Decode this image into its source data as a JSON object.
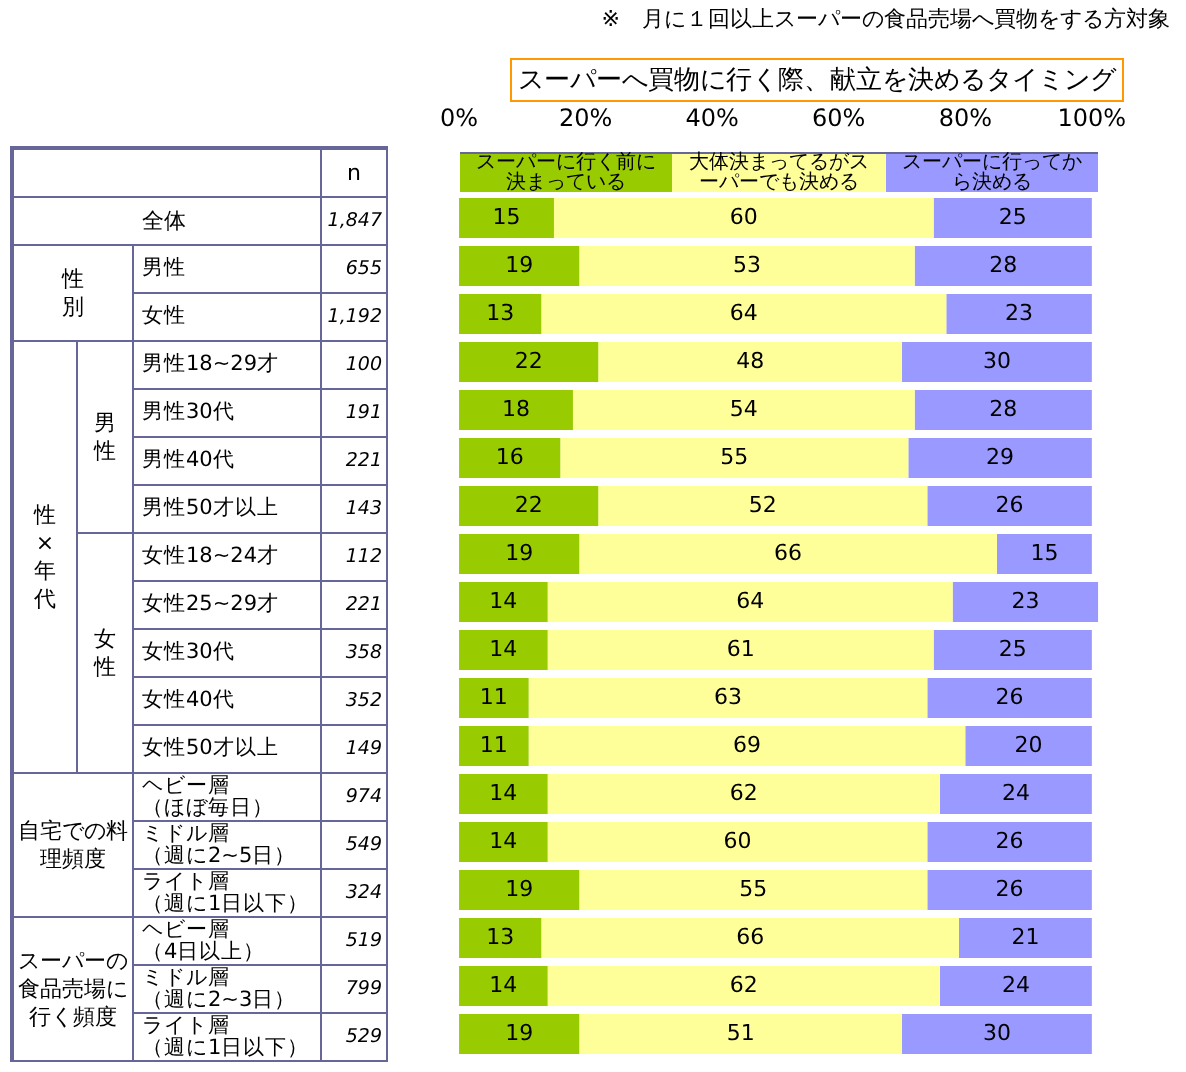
{
  "chart_data": {
    "type": "bar",
    "orientation": "horizontal",
    "stacked": true,
    "title": "スーパーへ買物に行く際、献立を決めるタイミング",
    "categories": [
      "全体",
      "男性",
      "女性",
      "男性18~29才",
      "男性30代",
      "男性40代",
      "男性50才以上",
      "女性18~24才",
      "女性25~29才",
      "女性30代",
      "女性40代",
      "女性50才以上",
      "ヘビー層（ほぼ毎日）",
      "ミドル層（週に2~5日）",
      "ライト層（週に1日以下）",
      "ヘビー層（4日以上）",
      "ミドル層（週に2~3日）",
      "ライト層（週に1日以下）"
    ],
    "y2_categories": [
      "1,847",
      "655",
      "1,192",
      "100",
      "191",
      "221",
      "143",
      "112",
      "221",
      "358",
      "352",
      "149",
      "974",
      "549",
      "324",
      "519",
      "799",
      "529"
    ],
    "series": [
      {
        "name": "スーパーに行く前に決まっている",
        "color": "#99cc00",
        "values": [
          15,
          19,
          13,
          22,
          18,
          16,
          22,
          19,
          14,
          14,
          11,
          11,
          14,
          14,
          19,
          13,
          14,
          19
        ]
      },
      {
        "name": "大体決まってるがスーパーでも決める",
        "color": "#ffff99",
        "values": [
          60,
          53,
          64,
          48,
          54,
          55,
          52,
          66,
          64,
          61,
          63,
          69,
          62,
          60,
          55,
          66,
          62,
          51
        ]
      },
      {
        "name": "スーパーに行ってから決める",
        "color": "#9999ff",
        "values": [
          25,
          28,
          23,
          30,
          28,
          29,
          26,
          15,
          23,
          25,
          26,
          20,
          24,
          26,
          26,
          21,
          24,
          30
        ]
      }
    ],
    "xlim": [
      0,
      101
    ],
    "xticks": [
      {
        "value": 0,
        "label": "0%"
      },
      {
        "value": 20,
        "label": "20%"
      },
      {
        "value": 40,
        "label": "40%"
      },
      {
        "value": 60,
        "label": "60%"
      },
      {
        "value": 80,
        "label": "80%"
      },
      {
        "value": 100,
        "label": "100%"
      }
    ],
    "data_labels": true,
    "legend": "top",
    "annotations": [
      "※　月に１回以上スーパーの食品売場へ買物をする方対象",
      "n",
      "性別",
      "性×年代",
      "男性",
      "女性",
      "自宅での料理頻度",
      "スーパーの食品売場に行く頻度"
    ]
  }
}
